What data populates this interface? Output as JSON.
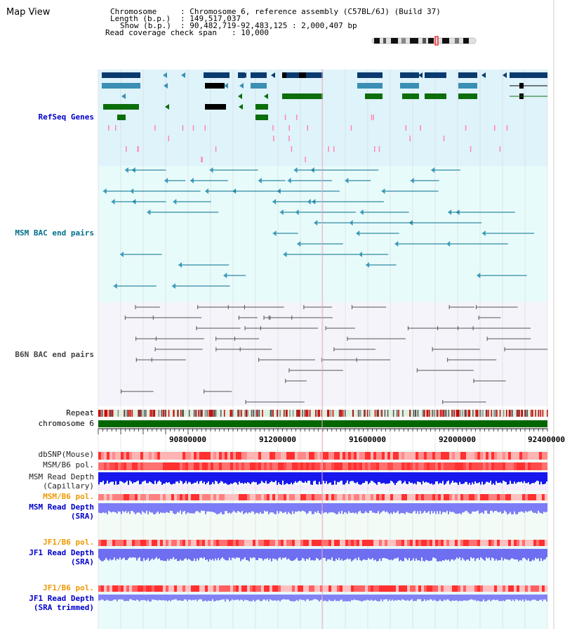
{
  "app": {
    "title": "Map View"
  },
  "header": {
    "chromosome_key": "Chromosome",
    "chromosome_val": ": Chromosome 6, reference assembly (C57BL/6J) (Build 37)",
    "length_key": "Length (b.p.)",
    "length_val": ": 149,517,037",
    "show_key": "Show (b.p.)",
    "show_val": ": 90,482,719-92,483,125 : 2,000,407 bp",
    "coverage_key": "Read coverage check span",
    "coverage_val": ": 10,000"
  },
  "tracks": {
    "refseq": {
      "label": "RefSeq Genes",
      "color": "#0000cc"
    },
    "msm_bac": {
      "label": "MSM BAC end pairs",
      "color": "#006e8c"
    },
    "b6n_bac": {
      "label": "B6N BAC end pairs",
      "color": "#444444"
    },
    "repeat": {
      "label": "Repeat"
    },
    "chrom": {
      "label": "chromosome 6"
    },
    "dbsnp": {
      "label": "dbSNP(Mouse)"
    },
    "msm_b6_pol": {
      "label": "MSM/B6 pol."
    },
    "msm_depth_cap": {
      "label1": "MSM Read Depth",
      "label2": "(Capillary)"
    },
    "msm_b6_pol2": {
      "label": "MSM/B6 pol."
    },
    "msm_depth_sra": {
      "label1": "MSM Read Depth",
      "label2": "(SRA)"
    },
    "jf1_b6_pol": {
      "label": "JF1/B6 pol."
    },
    "jf1_depth_sra": {
      "label1": "JF1 Read Depth",
      "label2": "(SRA)"
    },
    "jf1_b6_pol2": {
      "label": "JF1/B6 pol."
    },
    "jf1_depth_trim": {
      "label1": "JF1 Read Depth",
      "label2": "(SRA trimmed)"
    }
  },
  "axis": {
    "ticks": [
      "90800000",
      "91200000",
      "91600000",
      "92000000",
      "92400000"
    ]
  },
  "colors": {
    "refseq_bg": "#dff3fb",
    "msm_bg": "#e8fbfb",
    "b6n_bg": "#f4f4fa",
    "gene_dark": "#0b3a6e",
    "gene_mid": "#3b8fb4",
    "gene_green": "#0b6e0b",
    "chrom_green": "#006600",
    "depth_blue": "#1010f0",
    "depth_light": "#7878ff",
    "orange_label": "#ee9900"
  }
}
